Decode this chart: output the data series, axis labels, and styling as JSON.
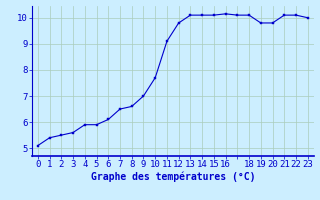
{
  "x": [
    0,
    1,
    2,
    3,
    4,
    5,
    6,
    7,
    8,
    9,
    10,
    11,
    12,
    13,
    14,
    15,
    16,
    17,
    18,
    19,
    20,
    21,
    22,
    23
  ],
  "y": [
    5.1,
    5.4,
    5.5,
    5.6,
    5.9,
    5.9,
    6.1,
    6.5,
    6.6,
    7.0,
    7.7,
    9.1,
    9.8,
    10.1,
    10.1,
    10.1,
    10.15,
    10.1,
    10.1,
    9.8,
    9.8,
    10.1,
    10.1,
    10.0
  ],
  "line_color": "#0000cc",
  "marker_color": "#0000cc",
  "bg_color": "#cceeff",
  "grid_color": "#aaccbb",
  "axis_color": "#0000cc",
  "xlabel": "Graphe des températures (°C)",
  "xlim": [
    -0.5,
    23.5
  ],
  "ylim": [
    4.7,
    10.45
  ],
  "yticks": [
    5,
    6,
    7,
    8,
    9,
    10
  ],
  "xticks": [
    0,
    1,
    2,
    3,
    4,
    5,
    6,
    7,
    8,
    9,
    10,
    11,
    12,
    13,
    14,
    15,
    16,
    17,
    18,
    19,
    20,
    21,
    22,
    23
  ],
  "xtick_labels": [
    "0",
    "1",
    "2",
    "3",
    "4",
    "5",
    "6",
    "7",
    "8",
    "9",
    "10",
    "11",
    "12",
    "13",
    "14",
    "15",
    "16",
    "",
    "18",
    "19",
    "20",
    "21",
    "22",
    "23"
  ],
  "font_size": 6.5,
  "xlabel_fontsize": 7.0
}
